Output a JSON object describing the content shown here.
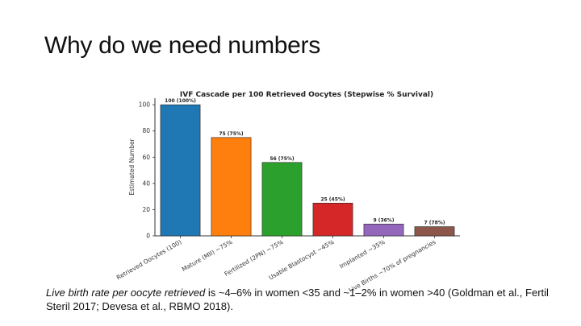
{
  "slide": {
    "title": "Why do we need numbers",
    "caption_italic": "Live birth rate per oocyte retrieved",
    "caption_rest": " is ~4–6% in women <35 and ~1–2% in women >40 (Goldman et al., Fertil Steril 2017; Devesa et al., RBMO 2018)."
  },
  "chart_data": {
    "type": "bar",
    "title": "IVF Cascade per 100 Retrieved Oocytes (Stepwise % Survival)",
    "xlabel": "",
    "ylabel": "Estimated Number",
    "ylim": [
      0,
      105
    ],
    "yticks": [
      0,
      20,
      40,
      60,
      80,
      100
    ],
    "grid": false,
    "categories": [
      "Retrieved Oocytes (100)",
      "Mature (MII) ~75%",
      "Fertilized (2PN) ~75%",
      "Usable Blastocyst ~45%",
      "Implanted ~35%",
      "Live Births ~70% of pregnancies"
    ],
    "values": [
      100,
      75,
      56,
      25,
      9,
      7
    ],
    "data_labels": [
      "100 (100%)",
      "75 (75%)",
      "56 (75%)",
      "25 (45%)",
      "9 (36%)",
      "7 (78%)"
    ],
    "colors": [
      "#1f77b4",
      "#ff7f0e",
      "#2ca02c",
      "#d62728",
      "#9467bd",
      "#8c564b"
    ]
  }
}
